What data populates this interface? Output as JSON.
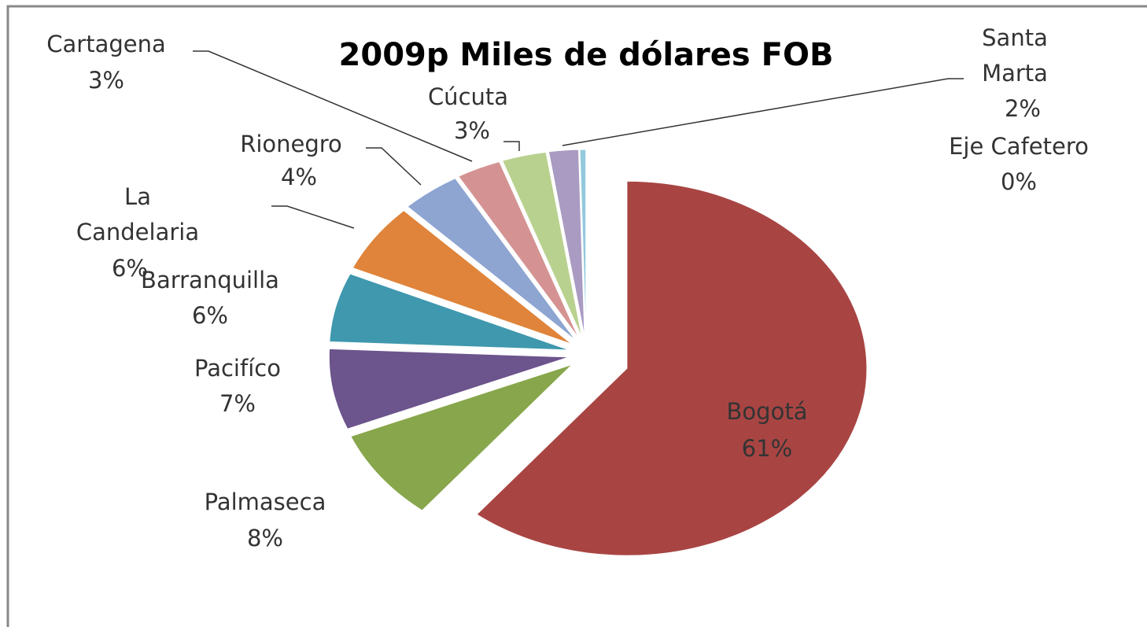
{
  "chart_data": {
    "type": "pie",
    "title": "2009p Miles de dólares FOB",
    "categories": [
      "Bogotá",
      "Palmaseca",
      "Pacifíco",
      "Barranquilla",
      "La Candelaria",
      "Rionegro",
      "Cartagena",
      "Cúcuta",
      "Santa Marta",
      "Eje Cafetero"
    ],
    "values": [
      61,
      8,
      7,
      6,
      6,
      4,
      3,
      3,
      2,
      0.4
    ],
    "value_labels": [
      "61%",
      "8%",
      "7%",
      "6%",
      "6%",
      "4%",
      "3%",
      "3%",
      "2%",
      "0%"
    ],
    "colors": [
      "#a84543",
      "#88a64b",
      "#6c548c",
      "#3f98ae",
      "#df843a",
      "#8ea5d2",
      "#d49392",
      "#b9d18f",
      "#a99bc2",
      "#92c9dc"
    ]
  }
}
